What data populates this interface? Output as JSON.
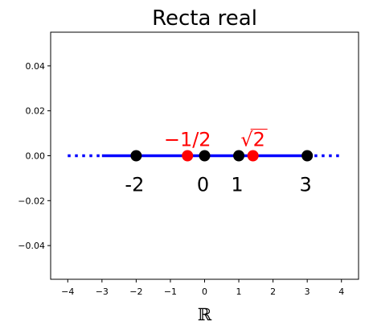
{
  "chart_data": {
    "type": "scatter",
    "title": "Recta real",
    "xlabel": "ℝ",
    "ylabel": "",
    "xlim": [
      -4.5,
      4.5
    ],
    "ylim": [
      -0.055,
      0.055
    ],
    "xticks": [
      -4,
      -3,
      -2,
      -1,
      0,
      1,
      2,
      3,
      4
    ],
    "xtick_labels": [
      "−4",
      "−3",
      "−2",
      "−1",
      "0",
      "1",
      "2",
      "3",
      "4"
    ],
    "yticks": [
      -0.04,
      -0.02,
      0.0,
      0.02,
      0.04
    ],
    "ytick_labels": [
      "−0.04",
      "−0.02",
      "0.00",
      "0.02",
      "0.04"
    ],
    "grid": false,
    "number_line": {
      "solid": [
        -3,
        3
      ],
      "dotted": [
        [
          -4,
          -3
        ],
        [
          3,
          4
        ]
      ],
      "y": 0,
      "color": "#0000ff"
    },
    "series": [
      {
        "color": "#000000",
        "points": [
          {
            "x": -2,
            "y": 0,
            "label": "-2"
          },
          {
            "x": 0,
            "y": 0,
            "label": "0"
          },
          {
            "x": 1,
            "y": 0,
            "label": "1"
          },
          {
            "x": 3,
            "y": 0,
            "label": "3"
          }
        ]
      },
      {
        "color": "#ff0000",
        "points": [
          {
            "x": -0.5,
            "y": 0,
            "label": "−1/2"
          },
          {
            "x": 1.4142,
            "y": 0,
            "label": "√2"
          }
        ]
      }
    ]
  }
}
